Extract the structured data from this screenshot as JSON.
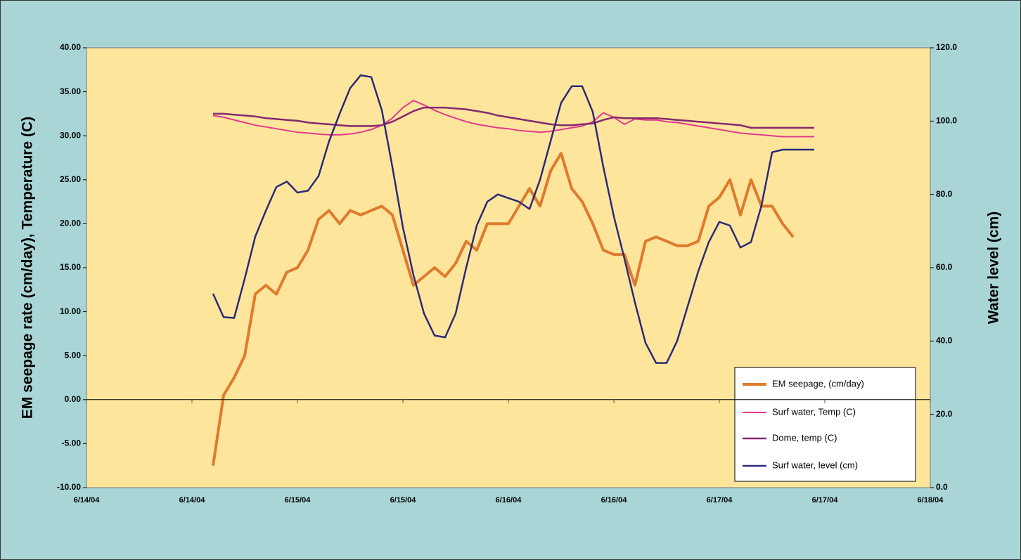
{
  "chart_data": {
    "type": "line",
    "y_label": "EM seepage rate (cm/day), Temperature (C)",
    "y2_label": "Water level (cm)",
    "x": [
      14.6,
      14.65,
      14.7,
      14.75,
      14.8,
      14.85,
      14.9,
      14.95,
      15,
      15.05,
      15.1,
      15.15,
      15.2,
      15.25,
      15.3,
      15.35,
      15.4,
      15.45,
      15.5,
      15.55,
      15.6,
      15.65,
      15.7,
      15.75,
      15.8,
      15.85,
      15.9,
      15.95,
      16,
      16.05,
      16.1,
      16.15,
      16.2,
      16.25,
      16.3,
      16.35,
      16.4,
      16.45,
      16.5,
      16.55,
      16.6,
      16.65,
      16.7,
      16.75,
      16.8,
      16.85,
      16.9,
      16.95,
      17,
      17.05,
      17.1,
      17.15,
      17.2,
      17.25,
      17.3,
      17.35,
      17.4,
      17.45
    ],
    "xlim": [
      14,
      18
    ],
    "xticks": [
      {
        "value": 14,
        "label": "6/14/04"
      },
      {
        "value": 14.5,
        "label": "6/14/04"
      },
      {
        "value": 15,
        "label": "6/15/04"
      },
      {
        "value": 15.5,
        "label": "6/15/04"
      },
      {
        "value": 16,
        "label": "6/16/04"
      },
      {
        "value": 16.5,
        "label": "6/16/04"
      },
      {
        "value": 17,
        "label": "6/17/04"
      },
      {
        "value": 17.5,
        "label": "6/17/04"
      },
      {
        "value": 18,
        "label": "6/18/04"
      }
    ],
    "ylim": [
      -10,
      40
    ],
    "yticks": [
      {
        "value": -10,
        "label": "-10.00"
      },
      {
        "value": -5,
        "label": "-5.00"
      },
      {
        "value": 0,
        "label": "0.00"
      },
      {
        "value": 5,
        "label": "5.00"
      },
      {
        "value": 10,
        "label": "10.00"
      },
      {
        "value": 15,
        "label": "15.00"
      },
      {
        "value": 20,
        "label": "20.00"
      },
      {
        "value": 25,
        "label": "25.00"
      },
      {
        "value": 30,
        "label": "30.00"
      },
      {
        "value": 35,
        "label": "35.00"
      },
      {
        "value": 40,
        "label": "40.00"
      }
    ],
    "y2lim": [
      0,
      120
    ],
    "y2ticks": [
      {
        "value": 0,
        "label": "0.0"
      },
      {
        "value": 20,
        "label": "20.0"
      },
      {
        "value": 40,
        "label": "40.0"
      },
      {
        "value": 60,
        "label": "60.0"
      },
      {
        "value": 80,
        "label": "80.0"
      },
      {
        "value": 100,
        "label": "100.0"
      },
      {
        "value": 120,
        "label": "120.0"
      }
    ],
    "grid": false,
    "legend": "lower right",
    "series": [
      {
        "name": "EM seepage, (cm/day)",
        "color": "#e07a2c",
        "width": 4,
        "values": [
          -7.5,
          0.5,
          2.5,
          5,
          12,
          13,
          12,
          14.5,
          15,
          17,
          20.5,
          21.5,
          20,
          21.5,
          21,
          21.5,
          22,
          21,
          17,
          13,
          14,
          15,
          14,
          15.5,
          18,
          17,
          20,
          20,
          20,
          22,
          24,
          22,
          26,
          28,
          24,
          22.5,
          20,
          17,
          16.5,
          16.5,
          13,
          18,
          18.5,
          18,
          17.5,
          17.5,
          18,
          22,
          23,
          25,
          21,
          25,
          22,
          22,
          20,
          18.5,
          null,
          null
        ]
      },
      {
        "name": "Surf water, Temp (C)",
        "color": "#e33a8c",
        "width": 2,
        "values": [
          32.3,
          32.1,
          31.8,
          31.5,
          31.2,
          31,
          30.8,
          30.6,
          30.4,
          30.3,
          30.2,
          30.1,
          30.1,
          30.2,
          30.4,
          30.7,
          31.2,
          32,
          33.2,
          34,
          33.5,
          32.9,
          32.4,
          32,
          31.6,
          31.3,
          31.1,
          30.9,
          30.8,
          30.6,
          30.5,
          30.4,
          30.5,
          30.7,
          30.9,
          31.1,
          31.6,
          32.6,
          32.1,
          31.3,
          31.9,
          31.8,
          31.8,
          31.6,
          31.5,
          31.3,
          31.1,
          30.9,
          30.7,
          30.5,
          30.3,
          30.2,
          30.1,
          30,
          29.9,
          29.9,
          29.9,
          29.9
        ]
      },
      {
        "name": "Dome, temp (C)",
        "color": "#86286e",
        "width": 2.5,
        "values": [
          32.5,
          32.5,
          32.4,
          32.3,
          32.2,
          32,
          31.9,
          31.8,
          31.7,
          31.5,
          31.4,
          31.3,
          31.2,
          31.1,
          31.1,
          31.1,
          31.2,
          31.6,
          32.2,
          32.8,
          33.2,
          33.2,
          33.2,
          33.1,
          33,
          32.8,
          32.6,
          32.3,
          32.1,
          31.9,
          31.7,
          31.5,
          31.3,
          31.2,
          31.2,
          31.3,
          31.4,
          31.8,
          32.1,
          32,
          32,
          32,
          32,
          31.9,
          31.8,
          31.7,
          31.6,
          31.5,
          31.4,
          31.3,
          31.2,
          30.9,
          30.9,
          30.9,
          30.9,
          30.9,
          30.9,
          30.9
        ]
      },
      {
        "name": "Surf water, level (cm)",
        "color": "#2b2a78",
        "width": 2.5,
        "axis": "y2",
        "values": [
          52.9,
          46.5,
          46.3,
          57,
          68.5,
          75.5,
          82,
          83.5,
          80.5,
          81,
          85,
          94.5,
          102,
          109,
          112.5,
          112,
          103,
          87.5,
          71,
          58,
          47.5,
          41.5,
          41,
          47.5,
          60,
          71.5,
          78,
          80,
          79,
          78,
          76,
          84,
          94.5,
          105,
          109.5,
          109.5,
          102.5,
          87.5,
          74,
          62.5,
          50.5,
          39.5,
          34,
          34,
          40,
          49.5,
          59,
          67,
          72.5,
          71.5,
          65.5,
          67,
          77,
          91.5,
          92.2,
          92.2,
          92.2,
          92.2
        ]
      }
    ]
  }
}
